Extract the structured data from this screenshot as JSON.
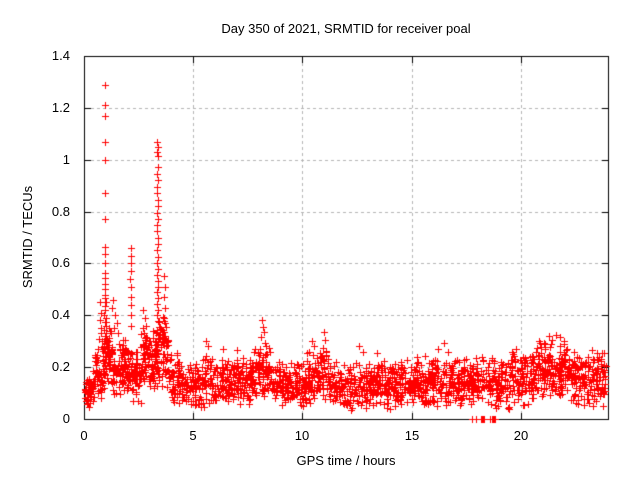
{
  "chart_data": {
    "type": "scatter",
    "title": "Day 350 of 2021, SRMTID for receiver poal",
    "xlabel": "GPS time / hours",
    "ylabel": "SRMTID / TECUs",
    "xlim": [
      0,
      24
    ],
    "ylim": [
      0,
      1.4
    ],
    "xticks": [
      0,
      5,
      10,
      15,
      20
    ],
    "yticks": [
      0,
      0.2,
      0.4,
      0.6,
      0.8,
      1,
      1.2,
      1.4
    ],
    "grid": true,
    "legend": "none",
    "marker": {
      "shape": "plus",
      "color": "#ff0000",
      "size": 7
    },
    "frame_color": "#000000",
    "grid_color": "#b5b5b5",
    "background": "#ffffff",
    "seed": 20211350,
    "noise_bands": [
      {
        "x0": 0.02,
        "x1": 0.5,
        "n": 70,
        "ymin": 0.04,
        "ymax": 0.2
      },
      {
        "x0": 0.5,
        "x1": 0.9,
        "n": 55,
        "ymin": 0.07,
        "ymax": 0.3
      },
      {
        "x0": 0.9,
        "x1": 1.25,
        "n": 55,
        "ymin": 0.1,
        "ymax": 0.38
      },
      {
        "x0": 1.25,
        "x1": 2.1,
        "n": 100,
        "ymin": 0.07,
        "ymax": 0.32
      },
      {
        "x0": 2.1,
        "x1": 2.6,
        "n": 60,
        "ymin": 0.05,
        "ymax": 0.28
      },
      {
        "x0": 2.6,
        "x1": 3.25,
        "n": 80,
        "ymin": 0.1,
        "ymax": 0.36
      },
      {
        "x0": 3.25,
        "x1": 3.85,
        "n": 80,
        "ymin": 0.1,
        "ymax": 0.4
      },
      {
        "x0": 3.85,
        "x1": 4.35,
        "n": 45,
        "ymin": 0.05,
        "ymax": 0.28
      },
      {
        "x0": 4.35,
        "x1": 5.0,
        "n": 55,
        "ymin": 0.04,
        "ymax": 0.22
      },
      {
        "x0": 5.0,
        "x1": 7.6,
        "n": 230,
        "ymin": 0.04,
        "ymax": 0.25
      },
      {
        "x0": 7.6,
        "x1": 8.6,
        "n": 95,
        "ymin": 0.05,
        "ymax": 0.3
      },
      {
        "x0": 8.6,
        "x1": 10.2,
        "n": 150,
        "ymin": 0.04,
        "ymax": 0.24
      },
      {
        "x0": 10.2,
        "x1": 11.2,
        "n": 95,
        "ymin": 0.04,
        "ymax": 0.28
      },
      {
        "x0": 11.2,
        "x1": 14.5,
        "n": 300,
        "ymin": 0.03,
        "ymax": 0.23
      },
      {
        "x0": 14.5,
        "x1": 16.5,
        "n": 185,
        "ymin": 0.04,
        "ymax": 0.25
      },
      {
        "x0": 16.5,
        "x1": 18.0,
        "n": 135,
        "ymin": 0.04,
        "ymax": 0.24
      },
      {
        "x0": 18.0,
        "x1": 19.5,
        "n": 130,
        "ymin": 0.03,
        "ymax": 0.25
      },
      {
        "x0": 19.5,
        "x1": 20.7,
        "n": 115,
        "ymin": 0.05,
        "ymax": 0.27
      },
      {
        "x0": 20.7,
        "x1": 22.3,
        "n": 165,
        "ymin": 0.07,
        "ymax": 0.31
      },
      {
        "x0": 22.3,
        "x1": 23.9,
        "n": 155,
        "ymin": 0.04,
        "ymax": 0.27
      }
    ],
    "outlier_points": [
      [
        0.97,
        1.29
      ],
      [
        0.96,
        1.21
      ],
      [
        0.97,
        1.17
      ],
      [
        0.96,
        1.07
      ],
      [
        0.97,
        1.0
      ],
      [
        0.98,
        0.87
      ],
      [
        0.96,
        0.77
      ],
      [
        0.97,
        0.665
      ],
      [
        0.965,
        0.635
      ],
      [
        0.97,
        0.6
      ],
      [
        0.955,
        0.565
      ],
      [
        0.975,
        0.545
      ],
      [
        0.96,
        0.52
      ],
      [
        0.98,
        0.5
      ],
      [
        0.945,
        0.48
      ],
      [
        0.97,
        0.465
      ],
      [
        0.99,
        0.45
      ],
      [
        0.955,
        0.435
      ],
      [
        0.97,
        0.42
      ],
      [
        0.93,
        0.4
      ],
      [
        1.0,
        0.39
      ],
      [
        0.96,
        0.375
      ],
      [
        1.02,
        0.36
      ],
      [
        0.91,
        0.345
      ],
      [
        0.99,
        0.33
      ],
      [
        0.94,
        0.32
      ],
      [
        1.03,
        0.31
      ],
      [
        0.9,
        0.3
      ],
      [
        0.75,
        0.45
      ],
      [
        0.78,
        0.41
      ],
      [
        0.72,
        0.38
      ],
      [
        0.8,
        0.35
      ],
      [
        0.76,
        0.33
      ],
      [
        0.7,
        0.31
      ],
      [
        0.82,
        0.3
      ],
      [
        1.35,
        0.46
      ],
      [
        1.3,
        0.43
      ],
      [
        1.42,
        0.4
      ],
      [
        1.5,
        0.37
      ],
      [
        1.38,
        0.35
      ],
      [
        1.55,
        0.33
      ],
      [
        1.25,
        0.34
      ],
      [
        2.13,
        0.66
      ],
      [
        2.16,
        0.63
      ],
      [
        2.14,
        0.6
      ],
      [
        2.15,
        0.57
      ],
      [
        2.12,
        0.54
      ],
      [
        2.17,
        0.51
      ],
      [
        2.14,
        0.47
      ],
      [
        2.16,
        0.44
      ],
      [
        2.13,
        0.4
      ],
      [
        2.15,
        0.36
      ],
      [
        2.72,
        0.42
      ],
      [
        2.78,
        0.39
      ],
      [
        2.83,
        0.36
      ],
      [
        2.68,
        0.35
      ],
      [
        2.75,
        0.33
      ],
      [
        3.36,
        1.07
      ],
      [
        3.39,
        1.05
      ],
      [
        3.34,
        1.03
      ],
      [
        3.37,
        1.015
      ],
      [
        3.41,
        0.97
      ],
      [
        3.35,
        0.945
      ],
      [
        3.38,
        0.92
      ],
      [
        3.36,
        0.895
      ],
      [
        3.34,
        0.87
      ],
      [
        3.39,
        0.845
      ],
      [
        3.37,
        0.82
      ],
      [
        3.35,
        0.795
      ],
      [
        3.4,
        0.77
      ],
      [
        3.36,
        0.75
      ],
      [
        3.34,
        0.725
      ],
      [
        3.38,
        0.7
      ],
      [
        3.37,
        0.675
      ],
      [
        3.35,
        0.65
      ],
      [
        3.39,
        0.625
      ],
      [
        3.36,
        0.6
      ],
      [
        3.41,
        0.578
      ],
      [
        3.34,
        0.555
      ],
      [
        3.38,
        0.532
      ],
      [
        3.37,
        0.51
      ],
      [
        3.35,
        0.488
      ],
      [
        3.4,
        0.466
      ],
      [
        3.36,
        0.444
      ],
      [
        3.39,
        0.422
      ],
      [
        3.34,
        0.4
      ],
      [
        3.37,
        0.378
      ],
      [
        3.42,
        0.356
      ],
      [
        3.36,
        0.334
      ],
      [
        3.38,
        0.312
      ],
      [
        3.35,
        0.29
      ],
      [
        3.65,
        0.55
      ],
      [
        3.7,
        0.51
      ],
      [
        3.68,
        0.47
      ],
      [
        3.73,
        0.43
      ],
      [
        3.66,
        0.39
      ],
      [
        3.75,
        0.355
      ],
      [
        3.7,
        0.32
      ],
      [
        3.78,
        0.3
      ],
      [
        5.6,
        0.3
      ],
      [
        5.67,
        0.28
      ],
      [
        6.35,
        0.27
      ],
      [
        7.0,
        0.265
      ],
      [
        8.15,
        0.38
      ],
      [
        8.19,
        0.355
      ],
      [
        8.23,
        0.335
      ],
      [
        8.11,
        0.315
      ],
      [
        8.27,
        0.295
      ],
      [
        8.32,
        0.28
      ],
      [
        8.05,
        0.27
      ],
      [
        7.95,
        0.26
      ],
      [
        10.45,
        0.3
      ],
      [
        10.52,
        0.28
      ],
      [
        11.0,
        0.335
      ],
      [
        11.06,
        0.305
      ],
      [
        10.95,
        0.275
      ],
      [
        10.3,
        0.26
      ],
      [
        12.6,
        0.28
      ],
      [
        12.8,
        0.26
      ],
      [
        13.4,
        0.255
      ],
      [
        16.5,
        0.295
      ],
      [
        16.2,
        0.27
      ],
      [
        16.65,
        0.26
      ],
      [
        19.8,
        0.27
      ],
      [
        19.6,
        0.26
      ],
      [
        21.3,
        0.32
      ],
      [
        21.45,
        0.305
      ],
      [
        21.8,
        0.315
      ],
      [
        20.9,
        0.295
      ],
      [
        22.0,
        0.3
      ],
      [
        21.1,
        0.29
      ],
      [
        21.6,
        0.325
      ],
      [
        23.3,
        0.05
      ],
      [
        23.45,
        0.07
      ],
      [
        23.15,
        0.06
      ],
      [
        22.9,
        0.055
      ]
    ],
    "zero_points": [
      17.76,
      17.95,
      18.18,
      18.22,
      18.26,
      18.3,
      18.6,
      18.67,
      18.72,
      18.78,
      18.84
    ]
  }
}
